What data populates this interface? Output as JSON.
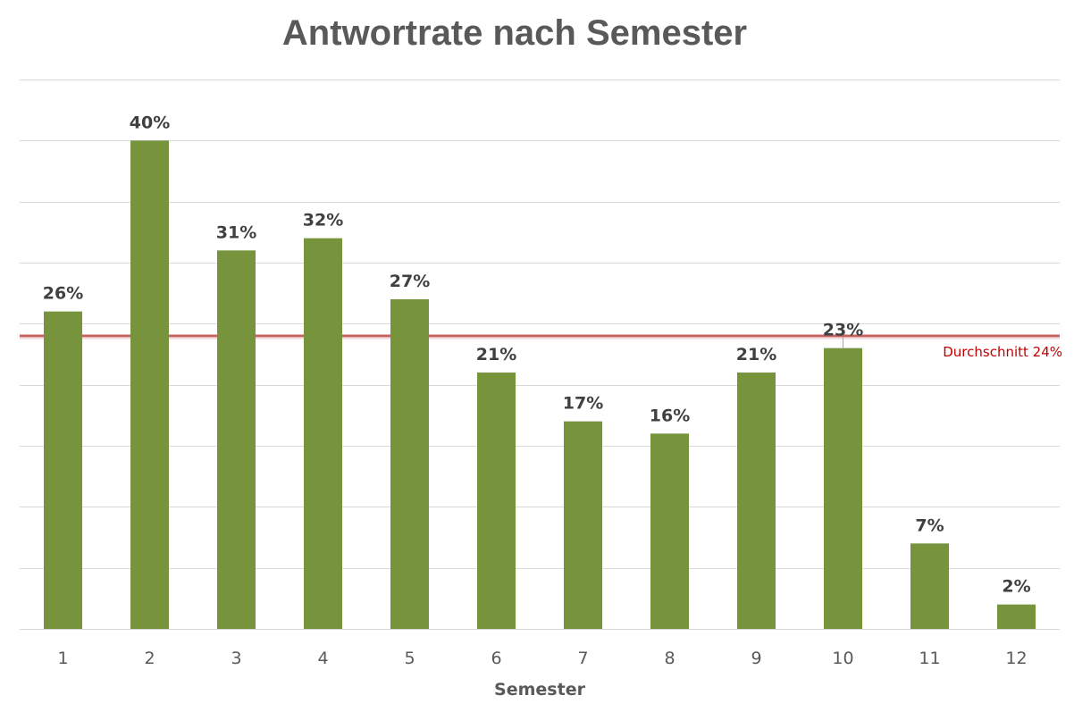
{
  "chart_data": {
    "type": "bar",
    "title": "Antwortrate nach Semester",
    "xlabel": "Semester",
    "ylabel": "",
    "categories": [
      "1",
      "2",
      "3",
      "4",
      "5",
      "6",
      "7",
      "8",
      "9",
      "10",
      "11",
      "12"
    ],
    "values": [
      26,
      40,
      31,
      32,
      27,
      21,
      17,
      16,
      21,
      23,
      7,
      2
    ],
    "value_labels": [
      "26%",
      "40%",
      "31%",
      "32%",
      "27%",
      "21%",
      "17%",
      "16%",
      "21%",
      "23%",
      "7%",
      "2%"
    ],
    "ylim": [
      0,
      45
    ],
    "gridlines": [
      0,
      5,
      10,
      15,
      20,
      25,
      30,
      35,
      40,
      45
    ],
    "grid": true,
    "y_axis_labels_shown": false,
    "average_line": {
      "value": 24,
      "label": "Durchschnitt 24%"
    },
    "colors": {
      "bar": "#77933c",
      "average_line": "#c0504d",
      "average_label": "#c00000",
      "grid": "#d9d9d9"
    }
  }
}
